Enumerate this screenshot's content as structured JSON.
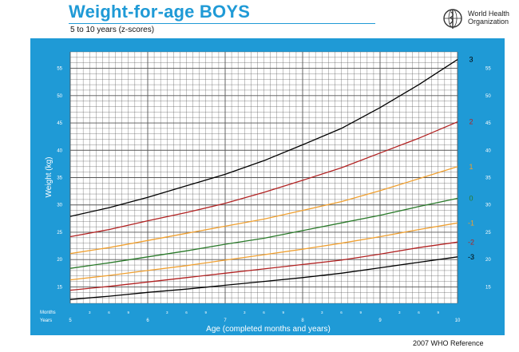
{
  "header": {
    "title": "Weight-for-age  BOYS",
    "subtitle": "5 to 10 years (z-scores)"
  },
  "logo": {
    "name": "who-emblem-icon",
    "text_line1": "World Health",
    "text_line2": "Organization"
  },
  "footer": {
    "reference": "2007 WHO Reference"
  },
  "colors": {
    "frame": "#1f9ad6",
    "grid": "#555555",
    "z3": "#000000",
    "z2": "#b22222",
    "z1": "#f0a030",
    "z0": "#2a7a2a"
  },
  "chart_data": {
    "type": "line",
    "xlabel": "Age (completed months and years)",
    "ylabel": "Weight (kg)",
    "axis_row_labels": {
      "months": "Months",
      "years": "Years"
    },
    "xlim": [
      5,
      10
    ],
    "ylim": [
      12,
      58
    ],
    "y_ticks": [
      15,
      20,
      25,
      30,
      35,
      40,
      45,
      50,
      55
    ],
    "year_ticks": [
      "5",
      "6",
      "7",
      "8",
      "9",
      "10"
    ],
    "month_ticks": [
      "3",
      "6",
      "9"
    ],
    "grid": true,
    "legend": "right-end-labels",
    "x": [
      5,
      5.5,
      6,
      6.5,
      7,
      7.5,
      8,
      8.5,
      9,
      9.5,
      10
    ],
    "series": [
      {
        "name": "3",
        "color": "#000000",
        "values": [
          27.9,
          29.5,
          31.4,
          33.5,
          35.6,
          38.1,
          41.0,
          44.0,
          47.8,
          52.0,
          56.6
        ]
      },
      {
        "name": "2",
        "color": "#b22222",
        "values": [
          24.2,
          25.5,
          27.1,
          28.6,
          30.3,
          32.3,
          34.5,
          36.8,
          39.5,
          42.2,
          45.2
        ]
      },
      {
        "name": "1",
        "color": "#f0a030",
        "values": [
          21.1,
          22.2,
          23.5,
          24.8,
          26.1,
          27.4,
          29.0,
          30.6,
          32.6,
          34.8,
          37.0
        ]
      },
      {
        "name": "0",
        "color": "#2a7a2a",
        "values": [
          18.4,
          19.4,
          20.5,
          21.6,
          22.8,
          23.9,
          25.3,
          26.7,
          28.1,
          29.7,
          31.2
        ]
      },
      {
        "name": "-1",
        "color": "#f0a030",
        "values": [
          16.3,
          17.1,
          18.0,
          18.9,
          19.9,
          20.9,
          21.9,
          23.0,
          24.2,
          25.5,
          26.7
        ]
      },
      {
        "name": "-2",
        "color": "#b22222",
        "values": [
          14.4,
          15.1,
          15.9,
          16.7,
          17.5,
          18.3,
          19.1,
          19.9,
          21.0,
          22.2,
          23.2
        ]
      },
      {
        "name": "-3",
        "color": "#000000",
        "values": [
          12.7,
          13.3,
          14.0,
          14.6,
          15.3,
          16.0,
          16.7,
          17.5,
          18.5,
          19.5,
          20.5
        ]
      }
    ]
  }
}
